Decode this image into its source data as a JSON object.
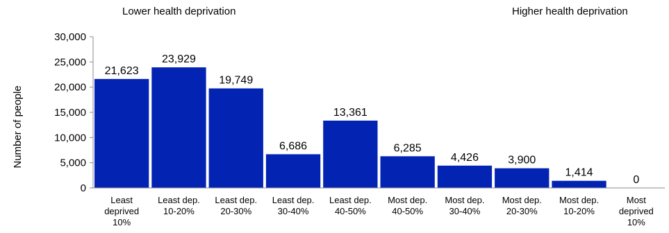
{
  "annotations": {
    "left": "Lower health deprivation",
    "right": "Higher health deprivation"
  },
  "chart_data": {
    "type": "bar",
    "title": "",
    "xlabel": "",
    "ylabel": "Number of people",
    "ylim": [
      0,
      30000
    ],
    "yticks": [
      0,
      5000,
      10000,
      15000,
      20000,
      25000,
      30000
    ],
    "ytick_labels": [
      "0",
      "5,000",
      "10,000",
      "15,000",
      "20,000",
      "25,000",
      "30,000"
    ],
    "grid": false,
    "legend": "none",
    "bar_color": "#0324B3",
    "categories": [
      [
        "Least",
        "deprived",
        "10%"
      ],
      [
        "Least dep.",
        "10-20%"
      ],
      [
        "Least dep.",
        "20-30%"
      ],
      [
        "Least dep.",
        "30-40%"
      ],
      [
        "Least dep.",
        "40-50%"
      ],
      [
        "Most dep.",
        "40-50%"
      ],
      [
        "Most dep.",
        "30-40%"
      ],
      [
        "Most dep.",
        "20-30%"
      ],
      [
        "Most dep.",
        "10-20%"
      ],
      [
        "Most",
        "deprived",
        "10%"
      ]
    ],
    "values": [
      21623,
      23929,
      19749,
      6686,
      13361,
      6285,
      4426,
      3900,
      1414,
      0
    ],
    "value_labels": [
      "21,623",
      "23,929",
      "19,749",
      "6,686",
      "13,361",
      "6,285",
      "4,426",
      "3,900",
      "1,414",
      "0"
    ]
  }
}
